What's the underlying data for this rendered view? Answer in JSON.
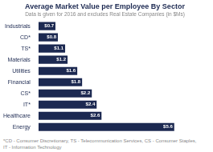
{
  "chart_data": {
    "type": "bar",
    "orientation": "horizontal",
    "title": "Average Market Value per Employee By Sector",
    "subtitle": "Data is given for 2016 and excludes Real Estate Companies (in $Ms)",
    "footnote": "*CD - Consumer Discretionary, TS - Telecommunication Services, CS - Consumer Staples,\nIT - Information Technology",
    "categories": [
      "Energy",
      "Healthcare",
      "IT*",
      "CS*",
      "Financial",
      "Utilities",
      "Materials",
      "TS*",
      "CD*",
      "Industrials"
    ],
    "values": [
      5.6,
      2.6,
      2.4,
      2.2,
      1.8,
      1.6,
      1.2,
      1.1,
      0.8,
      0.7
    ],
    "value_labels": [
      "$5.6",
      "$2.6",
      "$2.4",
      "$2.2",
      "$1.8",
      "$1.6",
      "$1.2",
      "$1.1",
      "$0.8",
      "$0.7"
    ],
    "data_labels": true,
    "color": "#1c2951",
    "xlim": [
      0,
      7.0
    ],
    "tick_labels": "y",
    "grid": false
  }
}
